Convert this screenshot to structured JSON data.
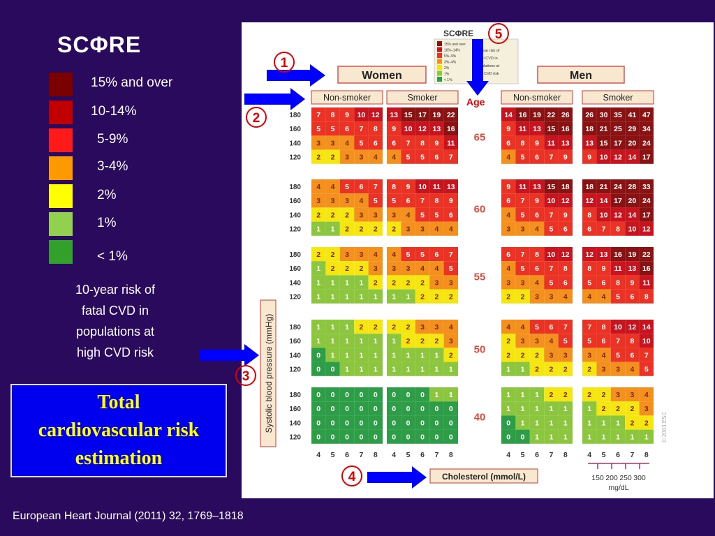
{
  "title": "SCΦRE",
  "legend": [
    {
      "label": "15% and over",
      "color": "#7b0000"
    },
    {
      "label": "10-14%",
      "color": "#c00000"
    },
    {
      "label": "5-9%",
      "color": "#ff1a1a"
    },
    {
      "label": "3-4%",
      "color": "#ff9900"
    },
    {
      "label": "2%",
      "color": "#ffff00"
    },
    {
      "label": "1%",
      "color": "#92d050"
    },
    {
      "label": "< 1%",
      "color": "#33a02c"
    }
  ],
  "risk_note": [
    "10-year risk of",
    "fatal CVD in",
    "populations at",
    "high CVD risk"
  ],
  "total_box": [
    "Total",
    "cardiovascular risk",
    "estimation"
  ],
  "citation": "European Heart Journal (2011) 32, 1769–1818",
  "markers": [
    "1",
    "2",
    "3",
    "4",
    "5"
  ],
  "age_label": "Age",
  "chart": {
    "logo": "SCΦRE",
    "mini_legend": [
      "15% and over",
      "10%–14%",
      "5%–9%",
      "3%–4%",
      "2%",
      "1%",
      "< 1%"
    ],
    "mini_note": [
      "10-year risk of",
      "fatal CVD in",
      "populations at",
      "high CVD risk"
    ],
    "women": "Women",
    "men": "Men",
    "non_smoker": "Non-smoker",
    "smoker": "Smoker",
    "y_axis": "Systolic blood pressure (mmHg)",
    "cholesterol": "Cholesterol (mmol/L)",
    "mgdl_ticks": [
      "150",
      "200",
      "250",
      "300"
    ],
    "mgdl_unit": "mg/dL",
    "copyright": "© 2003 ESC",
    "sbp": [
      "180",
      "160",
      "140",
      "120"
    ],
    "chol": [
      "4",
      "5",
      "6",
      "7",
      "8"
    ],
    "ages": [
      "65",
      "60",
      "55",
      "50",
      "40"
    ],
    "grids": {
      "women_non_smoker": [
        [
          [
            7,
            8,
            9,
            10,
            12
          ],
          [
            5,
            5,
            6,
            7,
            8
          ],
          [
            3,
            3,
            4,
            5,
            6
          ],
          [
            2,
            2,
            3,
            3,
            4
          ]
        ],
        [
          [
            4,
            4,
            5,
            6,
            7
          ],
          [
            3,
            3,
            3,
            4,
            5
          ],
          [
            2,
            2,
            2,
            3,
            3
          ],
          [
            1,
            1,
            2,
            2,
            2
          ]
        ],
        [
          [
            2,
            2,
            3,
            3,
            4
          ],
          [
            1,
            2,
            2,
            2,
            3
          ],
          [
            1,
            1,
            1,
            1,
            2
          ],
          [
            1,
            1,
            1,
            1,
            1
          ]
        ],
        [
          [
            1,
            1,
            1,
            2,
            2
          ],
          [
            1,
            1,
            1,
            1,
            1
          ],
          [
            0,
            1,
            1,
            1,
            1
          ],
          [
            0,
            0,
            1,
            1,
            1
          ]
        ],
        [
          [
            0,
            0,
            0,
            0,
            0
          ],
          [
            0,
            0,
            0,
            0,
            0
          ],
          [
            0,
            0,
            0,
            0,
            0
          ],
          [
            0,
            0,
            0,
            0,
            0
          ]
        ]
      ],
      "women_smoker": [
        [
          [
            13,
            15,
            17,
            19,
            22
          ],
          [
            9,
            10,
            12,
            13,
            16
          ],
          [
            6,
            7,
            8,
            9,
            11
          ],
          [
            4,
            5,
            5,
            6,
            7
          ]
        ],
        [
          [
            8,
            9,
            10,
            11,
            13
          ],
          [
            5,
            6,
            7,
            8,
            9
          ],
          [
            3,
            4,
            5,
            5,
            6
          ],
          [
            2,
            3,
            3,
            4,
            4
          ]
        ],
        [
          [
            4,
            5,
            5,
            6,
            7
          ],
          [
            3,
            3,
            4,
            4,
            5
          ],
          [
            2,
            2,
            2,
            3,
            3
          ],
          [
            1,
            1,
            2,
            2,
            2
          ]
        ],
        [
          [
            2,
            2,
            3,
            3,
            4
          ],
          [
            1,
            2,
            2,
            2,
            3
          ],
          [
            1,
            1,
            1,
            1,
            2
          ],
          [
            1,
            1,
            1,
            1,
            1
          ]
        ],
        [
          [
            0,
            0,
            0,
            1,
            1
          ],
          [
            0,
            0,
            0,
            0,
            0
          ],
          [
            0,
            0,
            0,
            0,
            0
          ],
          [
            0,
            0,
            0,
            0,
            0
          ]
        ]
      ],
      "men_non_smoker": [
        [
          [
            14,
            16,
            19,
            22,
            26
          ],
          [
            9,
            11,
            13,
            15,
            16
          ],
          [
            6,
            8,
            9,
            11,
            13
          ],
          [
            4,
            5,
            6,
            7,
            9
          ]
        ],
        [
          [
            9,
            11,
            13,
            15,
            18
          ],
          [
            6,
            7,
            9,
            10,
            12
          ],
          [
            4,
            5,
            6,
            7,
            9
          ],
          [
            3,
            3,
            4,
            5,
            6
          ]
        ],
        [
          [
            6,
            7,
            8,
            10,
            12
          ],
          [
            4,
            5,
            6,
            7,
            8
          ],
          [
            3,
            3,
            4,
            5,
            6
          ],
          [
            2,
            2,
            3,
            3,
            4
          ]
        ],
        [
          [
            4,
            4,
            5,
            6,
            7
          ],
          [
            2,
            3,
            3,
            4,
            5
          ],
          [
            2,
            2,
            2,
            3,
            3
          ],
          [
            1,
            1,
            2,
            2,
            2
          ]
        ],
        [
          [
            1,
            1,
            1,
            2,
            2
          ],
          [
            1,
            1,
            1,
            1,
            1
          ],
          [
            0,
            1,
            1,
            1,
            1
          ],
          [
            0,
            0,
            1,
            1,
            1
          ]
        ]
      ],
      "men_smoker": [
        [
          [
            26,
            30,
            35,
            41,
            47
          ],
          [
            18,
            21,
            25,
            29,
            34
          ],
          [
            13,
            15,
            17,
            20,
            24
          ],
          [
            9,
            10,
            12,
            14,
            17
          ]
        ],
        [
          [
            18,
            21,
            24,
            28,
            33
          ],
          [
            12,
            14,
            17,
            20,
            24
          ],
          [
            8,
            10,
            12,
            14,
            17
          ],
          [
            6,
            7,
            8,
            10,
            12
          ]
        ],
        [
          [
            12,
            13,
            16,
            19,
            22
          ],
          [
            8,
            9,
            11,
            13,
            16
          ],
          [
            5,
            6,
            8,
            9,
            11
          ],
          [
            4,
            4,
            5,
            6,
            8
          ]
        ],
        [
          [
            7,
            8,
            10,
            12,
            14
          ],
          [
            5,
            6,
            7,
            8,
            10
          ],
          [
            3,
            4,
            5,
            6,
            7
          ],
          [
            2,
            3,
            3,
            4,
            5
          ]
        ],
        [
          [
            2,
            2,
            3,
            3,
            4
          ],
          [
            1,
            2,
            2,
            2,
            3
          ],
          [
            1,
            1,
            1,
            2,
            2
          ],
          [
            1,
            1,
            1,
            1,
            1
          ]
        ]
      ]
    },
    "colors": {
      "c15": "#8b1212",
      "c10": "#c8141e",
      "c5": "#ea3324",
      "c3": "#f4901e",
      "c2": "#f5e612",
      "c1": "#8cc63f",
      "c0": "#2e9d47"
    }
  }
}
